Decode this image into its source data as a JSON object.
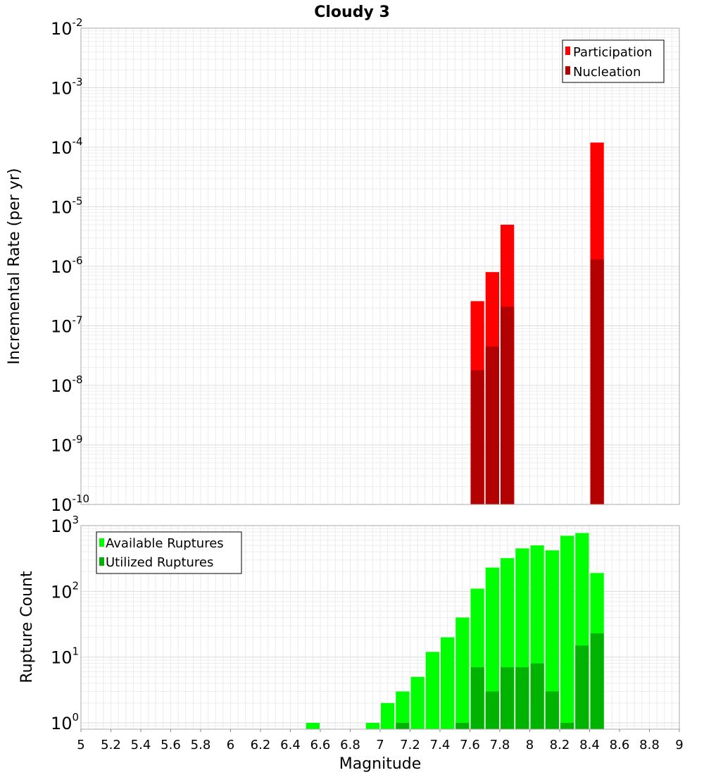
{
  "chart_data": [
    {
      "type": "bar",
      "title": "Cloudy 3",
      "xlabel": "Magnitude",
      "ylabel": "Incremental Rate (per yr)",
      "y_scale": "log",
      "ylim": [
        1e-10,
        0.01
      ],
      "xlim": [
        5,
        9
      ],
      "y_ticks": [
        {
          "base": "10",
          "exp": "-2"
        },
        {
          "base": "10",
          "exp": "-3"
        },
        {
          "base": "10",
          "exp": "-4"
        },
        {
          "base": "10",
          "exp": "-5"
        },
        {
          "base": "10",
          "exp": "-6"
        },
        {
          "base": "10",
          "exp": "-7"
        },
        {
          "base": "10",
          "exp": "-8"
        },
        {
          "base": "10",
          "exp": "-9"
        },
        {
          "base": "10",
          "exp": "-10"
        }
      ],
      "legend_position": "top-right",
      "bar_width": 0.1,
      "series": [
        {
          "name": "Participation",
          "color": "#ff0000",
          "x": [
            7.65,
            7.75,
            7.85,
            8.45
          ],
          "values": [
            2.6e-07,
            8e-07,
            5e-06,
            0.00012
          ]
        },
        {
          "name": "Nucleation",
          "color": "#b30000",
          "x": [
            7.65,
            7.75,
            7.85,
            8.45
          ],
          "values": [
            1.8e-08,
            4.5e-08,
            2.1e-07,
            1.3e-06
          ]
        }
      ]
    },
    {
      "type": "bar",
      "xlabel": "Magnitude",
      "ylabel": "Rupture Count",
      "y_scale": "log",
      "ylim": [
        0.8,
        1000
      ],
      "xlim": [
        5,
        9
      ],
      "y_ticks": [
        {
          "base": "10",
          "exp": "3"
        },
        {
          "base": "10",
          "exp": "2"
        },
        {
          "base": "10",
          "exp": "1"
        },
        {
          "base": "10",
          "exp": "0"
        }
      ],
      "x_ticks": [
        "5",
        "5.2",
        "5.4",
        "5.6",
        "5.8",
        "6",
        "6.2",
        "6.4",
        "6.6",
        "6.8",
        "7",
        "7.2",
        "7.4",
        "7.6",
        "7.8",
        "8",
        "8.2",
        "8.4",
        "8.6",
        "8.8",
        "9"
      ],
      "legend_position": "top-left",
      "bar_width": 0.1,
      "series": [
        {
          "name": "Available Ruptures",
          "color": "#00ff00",
          "x": [
            6.55,
            6.95,
            7.05,
            7.15,
            7.25,
            7.35,
            7.45,
            7.55,
            7.65,
            7.75,
            7.85,
            7.95,
            8.05,
            8.15,
            8.25,
            8.35,
            8.45
          ],
          "values": [
            1,
            1,
            2,
            3,
            5,
            12,
            20,
            40,
            110,
            230,
            320,
            450,
            500,
            420,
            700,
            770,
            190
          ]
        },
        {
          "name": "Utilized Ruptures",
          "color": "#00b300",
          "x": [
            7.15,
            7.55,
            7.65,
            7.75,
            7.85,
            7.95,
            8.05,
            8.15,
            8.25,
            8.35,
            8.45
          ],
          "values": [
            1,
            1,
            7,
            3,
            7,
            7,
            8,
            3,
            1,
            15,
            23
          ]
        }
      ]
    }
  ]
}
